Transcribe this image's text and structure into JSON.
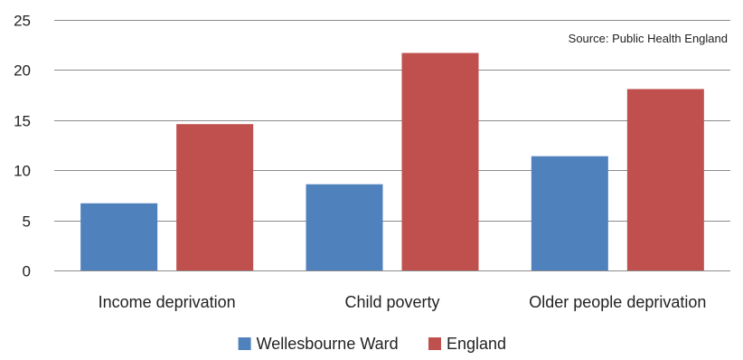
{
  "chart_data": {
    "type": "bar",
    "title": "",
    "source_note": "Source: Public Health England",
    "xlabel": "",
    "ylabel": "",
    "categories": [
      "Income deprivation",
      "Child poverty",
      "Older people deprivation"
    ],
    "series": [
      {
        "name": "Wellesbourne Ward",
        "color": "#4f81bd",
        "values": [
          6.7,
          8.6,
          11.4
        ]
      },
      {
        "name": "England",
        "color": "#c0504d",
        "values": [
          14.6,
          21.7,
          18.1
        ]
      }
    ],
    "ylim": [
      0,
      25
    ],
    "yticks": [
      0,
      5,
      10,
      15,
      20,
      25
    ],
    "grid": true,
    "legend_position": "bottom"
  }
}
